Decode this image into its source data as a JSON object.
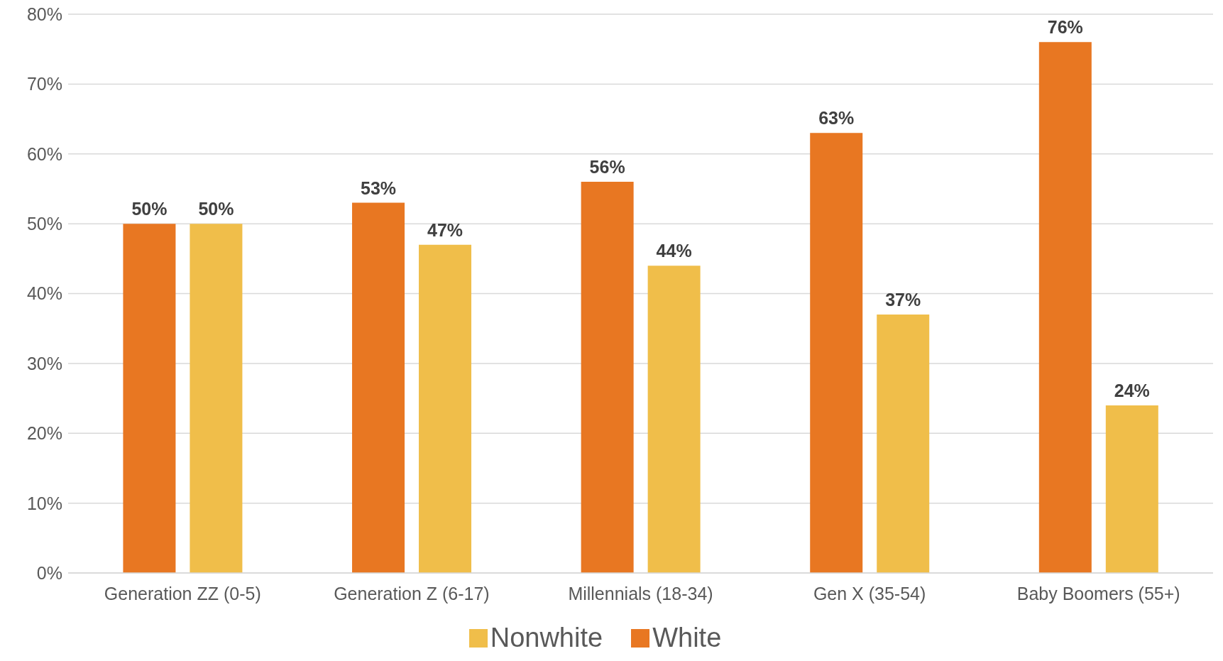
{
  "chart_data": {
    "type": "bar",
    "categories": [
      "Generation ZZ (0-5)",
      "Generation Z (6-17)",
      "Millennials (18-34)",
      "Gen X (35-54)",
      "Baby Boomers (55+)"
    ],
    "series": [
      {
        "name": "White",
        "color": "#e87722",
        "values": [
          50,
          53,
          56,
          63,
          76
        ],
        "value_labels": [
          "50%",
          "53%",
          "56%",
          "63%",
          "76%"
        ]
      },
      {
        "name": "Nonwhite",
        "color": "#f0be4a",
        "values": [
          50,
          47,
          44,
          37,
          24
        ],
        "value_labels": [
          "50%",
          "47%",
          "44%",
          "37%",
          "24%"
        ]
      }
    ],
    "ylim": [
      0,
      80
    ],
    "yticks": [
      {
        "value": 0,
        "label": "0%"
      },
      {
        "value": 10,
        "label": "10%"
      },
      {
        "value": 20,
        "label": "20%"
      },
      {
        "value": 30,
        "label": "30%"
      },
      {
        "value": 40,
        "label": "40%"
      },
      {
        "value": 50,
        "label": "50%"
      },
      {
        "value": 60,
        "label": "60%"
      },
      {
        "value": 70,
        "label": "70%"
      },
      {
        "value": 80,
        "label": "80%"
      }
    ],
    "grid": "y",
    "legend": "bottom"
  }
}
